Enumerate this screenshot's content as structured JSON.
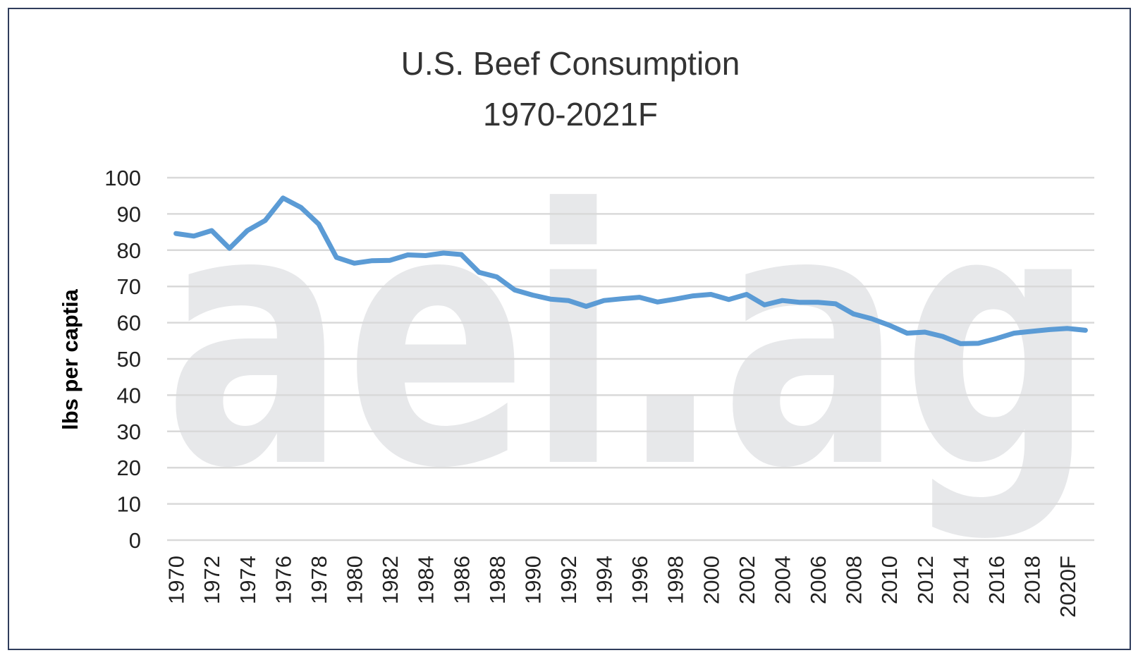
{
  "chart_data": {
    "type": "line",
    "title": "U.S. Beef Consumption",
    "subtitle": "1970-2021F",
    "ylabel": "lbs per captia",
    "xlabel": "",
    "ylim": [
      0,
      100
    ],
    "yticks": [
      "0",
      "10",
      "20",
      "30",
      "40",
      "50",
      "60",
      "70",
      "80",
      "90",
      "100"
    ],
    "grid": true,
    "legend": "none",
    "watermark": "aei.ag",
    "colors": {
      "line": "#5b9bd5",
      "grid": "#d9d9d9",
      "watermark": "#e7e8ea",
      "border": "#2f3d5c"
    },
    "x": [
      "1970",
      "1971",
      "1972",
      "1973",
      "1974",
      "1975",
      "1976",
      "1977",
      "1978",
      "1979",
      "1980",
      "1981",
      "1982",
      "1983",
      "1984",
      "1985",
      "1986",
      "1987",
      "1988",
      "1989",
      "1990",
      "1991",
      "1992",
      "1993",
      "1994",
      "1995",
      "1996",
      "1997",
      "1998",
      "1999",
      "2000",
      "2001",
      "2002",
      "2003",
      "2004",
      "2005",
      "2006",
      "2007",
      "2008",
      "2009",
      "2010",
      "2011",
      "2012",
      "2013",
      "2014",
      "2015",
      "2016",
      "2017",
      "2018",
      "2019",
      "2020F",
      "2021F"
    ],
    "xtick_labels": [
      "1970",
      "1972",
      "1974",
      "1976",
      "1978",
      "1980",
      "1982",
      "1984",
      "1986",
      "1988",
      "1990",
      "1992",
      "1994",
      "1996",
      "1998",
      "2000",
      "2002",
      "2004",
      "2006",
      "2008",
      "2010",
      "2012",
      "2014",
      "2016",
      "2018",
      "2020F"
    ],
    "series": [
      {
        "values": [
          84.6,
          83.9,
          85.4,
          80.5,
          85.4,
          88.2,
          94.4,
          91.8,
          87.2,
          78.0,
          76.4,
          77.1,
          77.2,
          78.7,
          78.5,
          79.2,
          78.8,
          73.9,
          72.6,
          69.0,
          67.6,
          66.5,
          66.1,
          64.5,
          66.1,
          66.6,
          67.0,
          65.7,
          66.5,
          67.4,
          67.8,
          66.4,
          67.8,
          64.9,
          66.1,
          65.6,
          65.6,
          65.2,
          62.4,
          61.1,
          59.3,
          57.1,
          57.4,
          56.2,
          54.2,
          54.3,
          55.6,
          57.1,
          57.6,
          58.1,
          58.4,
          57.9
        ]
      }
    ]
  }
}
